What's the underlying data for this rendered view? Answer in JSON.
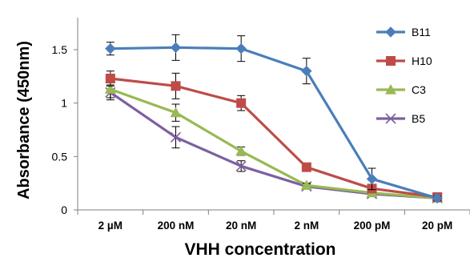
{
  "chart_data": {
    "type": "line",
    "xlabel": "VHH concentration",
    "ylabel": "Absorbance (450nm)",
    "categories": [
      "2 µM",
      "200 nM",
      "20 nM",
      "2 nM",
      "200 pM",
      "20 pM"
    ],
    "ylim": [
      0,
      1.8
    ],
    "yticks": [
      0,
      0.5,
      1,
      1.5
    ],
    "ytick_labels": [
      "0",
      "0.5",
      "1",
      "1.5"
    ],
    "legend_position": "top-right",
    "grid": false,
    "series": [
      {
        "name": "B11",
        "color": "#4a7ebb",
        "marker": "diamond",
        "values": [
          1.51,
          1.52,
          1.51,
          1.3,
          0.29,
          0.11
        ],
        "errors": [
          0.06,
          0.12,
          0.12,
          0.12,
          0.1,
          0.02
        ]
      },
      {
        "name": "H10",
        "color": "#be4b48",
        "marker": "square",
        "values": [
          1.23,
          1.16,
          1.0,
          0.4,
          0.2,
          0.12
        ],
        "errors": [
          0.07,
          0.12,
          0.07,
          0.03,
          0.03,
          0.02
        ]
      },
      {
        "name": "C3",
        "color": "#98b954",
        "marker": "triangle",
        "values": [
          1.13,
          0.91,
          0.55,
          0.23,
          0.16,
          0.11
        ],
        "errors": [
          0.08,
          0.08,
          0.04,
          0.02,
          0.02,
          0.02
        ]
      },
      {
        "name": "B5",
        "color": "#7d60a0",
        "marker": "x",
        "values": [
          1.1,
          0.68,
          0.41,
          0.22,
          0.15,
          0.11
        ],
        "errors": [
          0.07,
          0.1,
          0.05,
          0.02,
          0.02,
          0.02
        ]
      }
    ]
  }
}
